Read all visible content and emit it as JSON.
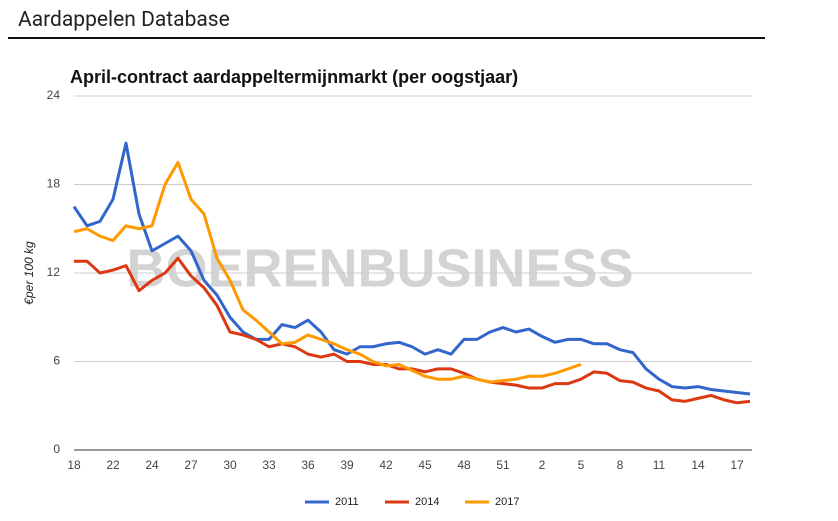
{
  "header": {
    "title": "Aardappelen Database"
  },
  "chart_data": {
    "type": "line",
    "title": "April-contract aardappeltermijnmarkt (per oogstjaar)",
    "y_label": "€per 100 kg",
    "watermark": "BOERENBUSINESS",
    "categories": [
      "18",
      null,
      null,
      "22",
      null,
      null,
      "24",
      null,
      null,
      "27",
      null,
      null,
      "30",
      null,
      null,
      "33",
      null,
      null,
      "36",
      null,
      null,
      "39",
      null,
      null,
      "42",
      null,
      null,
      "45",
      null,
      null,
      "48",
      null,
      null,
      "51",
      null,
      null,
      "2",
      null,
      null,
      "5",
      null,
      null,
      "8",
      null,
      null,
      "11",
      null,
      null,
      "14",
      null,
      null,
      "17",
      null
    ],
    "ylim": [
      0,
      24
    ],
    "yticks": [
      0,
      6,
      12,
      18,
      24
    ],
    "grid": true,
    "legend": "bottom",
    "series": [
      {
        "name": "2011",
        "color": "#3366cc",
        "values": [
          16.5,
          15.2,
          15.5,
          17,
          20.8,
          16,
          13.5,
          14,
          14.5,
          13.5,
          11.5,
          10.5,
          9,
          8,
          7.5,
          7.5,
          8.5,
          8.3,
          8.8,
          8,
          6.8,
          6.5,
          7,
          7,
          7.2,
          7.3,
          7,
          6.5,
          6.8,
          6.5,
          7.5,
          7.5,
          8,
          8.3,
          8,
          8.2,
          7.7,
          7.3,
          7.5,
          7.5,
          7.2,
          7.2,
          6.8,
          6.6,
          5.5,
          4.8,
          4.3,
          4.2,
          4.3,
          4.1,
          4,
          3.9,
          3.8
        ]
      },
      {
        "name": "2014",
        "color": "#dc3912",
        "values": [
          12.8,
          12.8,
          12,
          12.2,
          12.5,
          10.8,
          11.5,
          12,
          13,
          11.8,
          11,
          9.8,
          8,
          7.8,
          7.5,
          7,
          7.2,
          7,
          6.5,
          6.3,
          6.5,
          6,
          6,
          5.8,
          5.8,
          5.5,
          5.5,
          5.3,
          5.5,
          5.5,
          5.2,
          4.8,
          4.6,
          4.5,
          4.4,
          4.2,
          4.2,
          4.5,
          4.5,
          4.8,
          5.3,
          5.2,
          4.7,
          4.6,
          4.2,
          4,
          3.4,
          3.3,
          3.5,
          3.7,
          3.4,
          3.2,
          3.3
        ]
      },
      {
        "name": "2017",
        "color": "#ff9900",
        "values": [
          14.8,
          15,
          14.5,
          14.2,
          15.2,
          15,
          15.2,
          18,
          19.5,
          17,
          16,
          13,
          11.5,
          9.5,
          8.8,
          8,
          7.2,
          7.3,
          7.8,
          7.5,
          7.2,
          6.8,
          6.5,
          6,
          5.7,
          5.8,
          5.4,
          5,
          4.8,
          4.8,
          5,
          4.8,
          4.6,
          4.7,
          4.8,
          5,
          5,
          5.2,
          5.5,
          5.8,
          null,
          null,
          null,
          null,
          null,
          null,
          null,
          null,
          null,
          null,
          null,
          null,
          null
        ]
      }
    ]
  }
}
